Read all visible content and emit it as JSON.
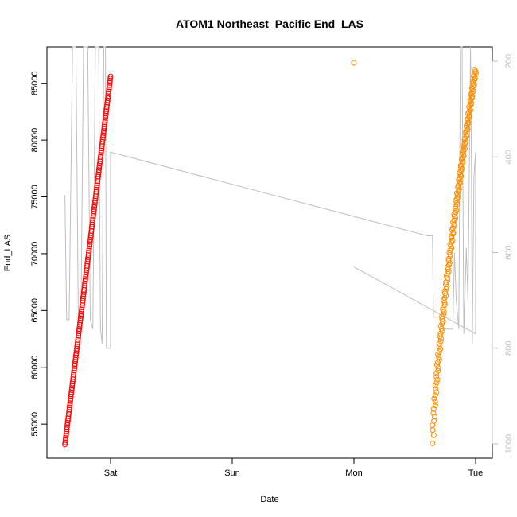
{
  "chart_data": {
    "type": "scatter",
    "title": "ATOM1 Northeast_Pacific End_LAS",
    "xlabel": "Date",
    "ylabel": "End_LAS",
    "x_ticks": [
      "Sat",
      "Sun",
      "Mon",
      "Tue"
    ],
    "y_ticks": [
      55000,
      60000,
      65000,
      70000,
      75000,
      80000,
      85000
    ],
    "y_lim": [
      52000,
      88200
    ],
    "y2_ticks": [
      200,
      400,
      600,
      800,
      1000
    ],
    "y2_lim": [
      1030,
      170
    ],
    "y2_reversed": true,
    "colors": {
      "series1": "#ff0000",
      "series2": "#ff8c00",
      "line": "#bebebe",
      "axis": "#000000",
      "right_axis": "#bebebe"
    },
    "series": [
      {
        "color": "#ff0000",
        "marker": "circle",
        "x_range": [
          "Fri 15:00",
          "Sat 00:00"
        ],
        "y_range": [
          53200,
          85600
        ],
        "point_count": 170
      },
      {
        "color": "#ff8c00",
        "marker": "circle",
        "outlier": {
          "x": "Mon 00:00",
          "y": 86800
        },
        "x_range": [
          "Mon 15:30",
          "Tue 00:00"
        ],
        "y_range": [
          53300,
          86200
        ],
        "point_count": 170
      },
      {
        "color": "#bebebe",
        "marker": "line",
        "axis": "right",
        "points": [
          [
            "Fri 15:00",
            480
          ],
          [
            "Fri 15:20",
            740
          ],
          [
            "Fri 15:50",
            740
          ],
          [
            "Fri 16:30",
            170
          ],
          [
            "Fri 17:10",
            170
          ],
          [
            "Fri 17:40",
            760
          ],
          [
            "Fri 18:10",
            740
          ],
          [
            "Fri 18:40",
            170
          ],
          [
            "Fri 19:30",
            170
          ],
          [
            "Fri 20:00",
            740
          ],
          [
            "Fri 20:30",
            760
          ],
          [
            "Fri 21:00",
            170
          ],
          [
            "Fri 21:40",
            170
          ],
          [
            "Fri 22:00",
            760
          ],
          [
            "Fri 22:20",
            790
          ],
          [
            "Fri 22:40",
            170
          ],
          [
            "Fri 23:00",
            170
          ],
          [
            "Fri 23:10",
            800
          ],
          [
            "Sat 00:00",
            800
          ],
          [
            "Sat 00:00",
            390
          ],
          [
            "Mon 14:30",
            565
          ],
          [
            "Mon 15:30",
            565
          ],
          [
            "Mon 15:40",
            735
          ],
          [
            "Mon 17:00",
            735
          ],
          [
            "Mon 17:10",
            760
          ],
          [
            "Mon 19:30",
            760
          ],
          [
            "Mon 19:50",
            600
          ],
          [
            "Mon 20:10",
            700
          ],
          [
            "Mon 20:40",
            760
          ],
          [
            "Mon 21:00",
            170
          ],
          [
            "Mon 21:20",
            170
          ],
          [
            "Mon 21:40",
            770
          ],
          [
            "Mon 22:10",
            590
          ],
          [
            "Mon 22:30",
            700
          ],
          [
            "Mon 23:00",
            170
          ],
          [
            "Mon 23:10",
            400
          ],
          [
            "Mon 23:20",
            790
          ],
          [
            "Mon 23:40",
            440
          ],
          [
            "Tue 00:00",
            390
          ],
          [
            "Tue 00:00",
            770
          ],
          [
            "Mon 00:00",
            630
          ]
        ]
      }
    ]
  }
}
